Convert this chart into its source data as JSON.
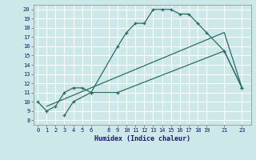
{
  "bg_color": "#cce8e8",
  "grid_color": "#ffffff",
  "line_color": "#2d6b65",
  "xlabel": "Humidex (Indice chaleur)",
  "xlim": [
    -0.5,
    24.0
  ],
  "ylim": [
    7.5,
    20.5
  ],
  "xticks": [
    0,
    1,
    2,
    3,
    4,
    5,
    6,
    8,
    9,
    10,
    11,
    12,
    13,
    14,
    15,
    16,
    17,
    18,
    19,
    21,
    23
  ],
  "yticks": [
    8,
    9,
    10,
    11,
    12,
    13,
    14,
    15,
    16,
    17,
    18,
    19,
    20
  ],
  "line1_x": [
    0,
    1,
    2,
    3,
    4,
    5,
    6,
    9,
    10,
    11,
    12,
    13,
    14,
    15,
    16,
    17,
    18,
    19,
    21,
    23
  ],
  "line1_y": [
    10,
    9,
    9.5,
    11,
    11.5,
    11.5,
    11,
    16,
    17.5,
    18.5,
    18.5,
    20,
    20,
    20,
    19.5,
    19.5,
    18.5,
    17.5,
    15.5,
    11.5
  ],
  "line2_x": [
    3,
    4,
    6,
    9,
    21,
    23
  ],
  "line2_y": [
    8.5,
    10.0,
    11.0,
    11.0,
    15.5,
    11.5
  ],
  "line3_x": [
    1,
    21,
    23
  ],
  "line3_y": [
    9.5,
    17.5,
    11.5
  ]
}
